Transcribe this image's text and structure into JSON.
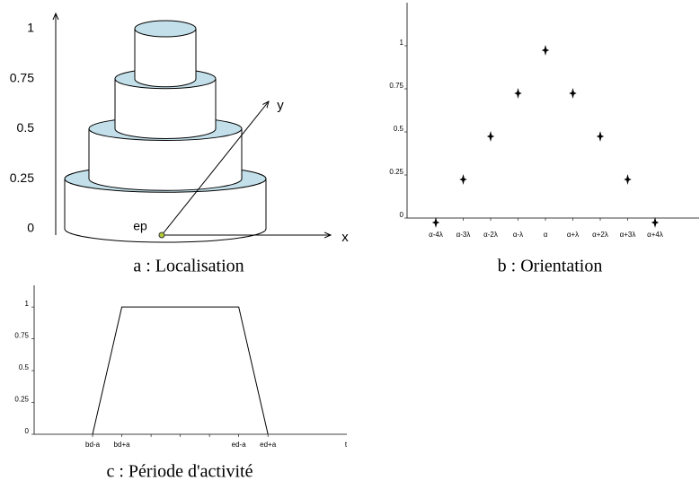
{
  "chart_data": [
    {
      "type": "cylinders",
      "title": "a : Localisation",
      "values": [
        0.25,
        0.5,
        0.75,
        1
      ],
      "ylim": [
        0,
        1
      ],
      "yticks": [
        0,
        0.25,
        0.5,
        0.75,
        1
      ],
      "color": "#c3e0ea",
      "xlabel": "x",
      "ylabel": "y",
      "annotation": "ep"
    },
    {
      "type": "scatter",
      "title": "b : Orientation",
      "categories": [
        "α-4λ",
        "α-3λ",
        "α-2λ",
        "α-λ",
        "α",
        "α+λ",
        "α+2λ",
        "α+3λ",
        "α+4λ"
      ],
      "values": [
        0,
        0.25,
        0.5,
        0.75,
        1,
        0.75,
        0.5,
        0.25,
        0
      ],
      "ylim": [
        0,
        1.25
      ],
      "yticks": [
        0,
        0.25,
        0.5,
        0.75,
        1
      ],
      "color": "#000000"
    },
    {
      "type": "line",
      "title": "c : Période d'activité",
      "x": [
        1,
        2,
        6,
        7
      ],
      "values": [
        0,
        1,
        1,
        0
      ],
      "xlim": [
        -1,
        9.7
      ],
      "xticks": [
        {
          "value": 1,
          "label": "bd-a"
        },
        {
          "value": 2,
          "label": "bd+a"
        },
        {
          "value": 3,
          "label": null
        },
        {
          "value": 4,
          "label": null
        },
        {
          "value": 5,
          "label": null
        },
        {
          "value": 6,
          "label": "ed-a"
        },
        {
          "value": 7,
          "label": "ed+a"
        }
      ],
      "xlabel": "t",
      "ylim": [
        0,
        1.17
      ],
      "yticks": [
        0,
        0.25,
        0.5,
        0.75,
        1
      ],
      "color": "#000000"
    }
  ]
}
